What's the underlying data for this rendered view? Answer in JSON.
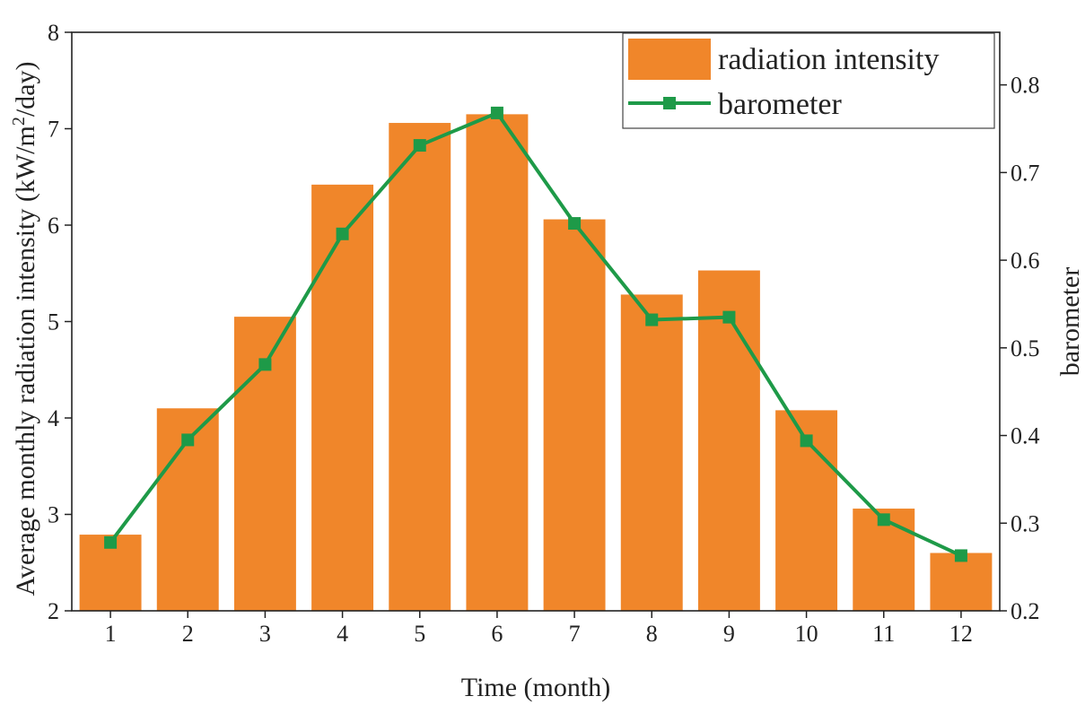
{
  "chart_data": {
    "type": "bar+line",
    "categories": [
      "1",
      "2",
      "3",
      "4",
      "5",
      "6",
      "7",
      "8",
      "9",
      "10",
      "11",
      "12"
    ],
    "series": [
      {
        "name": "radiation intensity",
        "type": "bar",
        "axis": "left",
        "color": "#F0862A",
        "values": [
          2.79,
          4.1,
          5.05,
          6.42,
          7.06,
          7.15,
          6.06,
          5.28,
          5.53,
          4.08,
          3.06,
          2.6
        ]
      },
      {
        "name": "barometer",
        "type": "line",
        "axis": "right",
        "color": "#1E9A48",
        "marker": "square",
        "values": [
          0.278,
          0.395,
          0.481,
          0.63,
          0.731,
          0.768,
          0.642,
          0.532,
          0.535,
          0.394,
          0.304,
          0.263
        ]
      }
    ],
    "xlabel": "Time (month)",
    "ylabel": {
      "prefix": "Average monthly radiation intensity (kW/m",
      "superscript": "2",
      "suffix": "/day)"
    },
    "y2label": "barometer",
    "ylim": [
      2,
      8
    ],
    "y2lim": [
      0.2,
      0.86
    ],
    "yticks": [
      "2",
      "3",
      "4",
      "5",
      "6",
      "7",
      "8"
    ],
    "y2ticks": [
      "0.2",
      "0.3",
      "0.4",
      "0.5",
      "0.6",
      "0.7",
      "0.8"
    ],
    "legend": {
      "position": "top-right",
      "entries": [
        "radiation intensity",
        "barometer"
      ]
    }
  }
}
